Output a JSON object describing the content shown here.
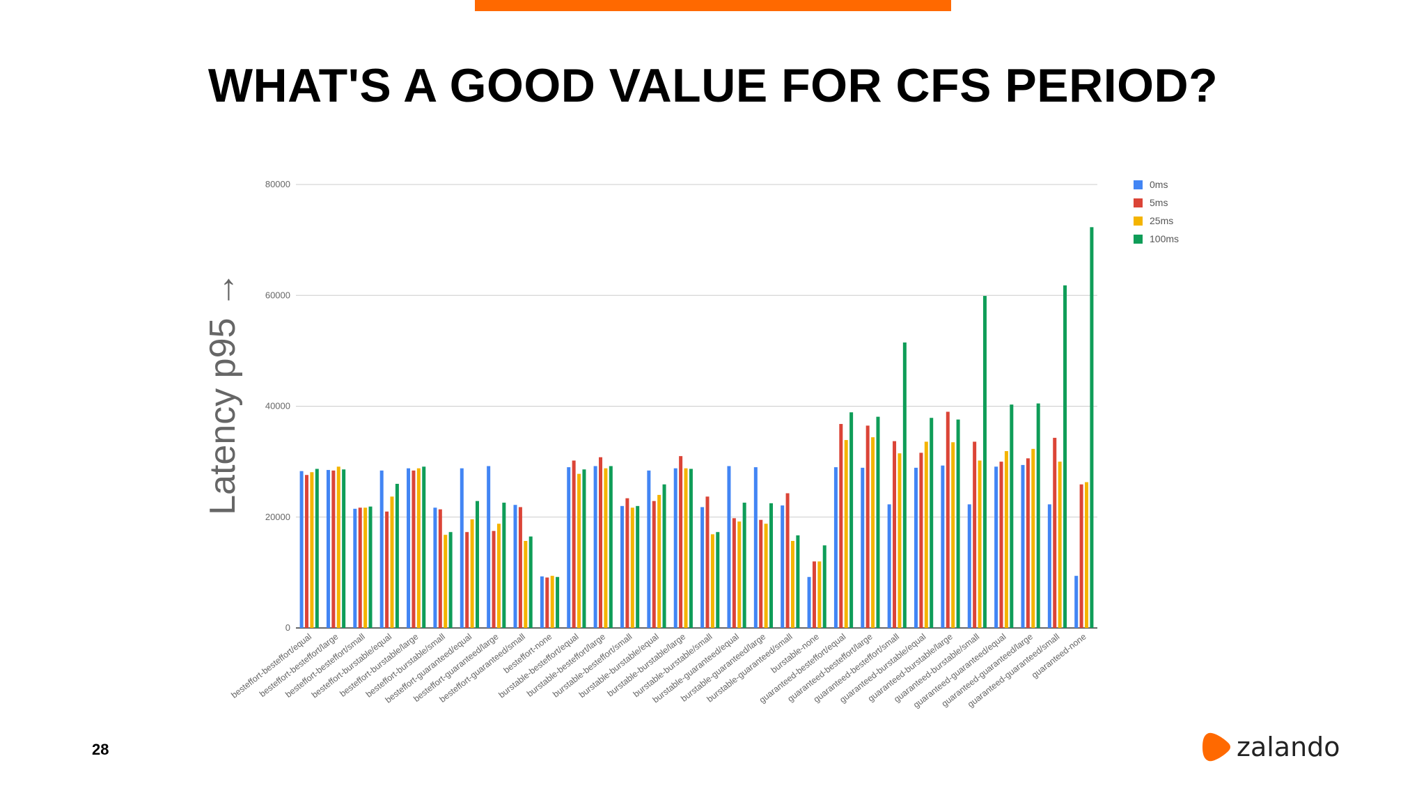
{
  "page": {
    "title": "WHAT'S A GOOD VALUE FOR CFS PERIOD?",
    "page_number": "28",
    "logo_text": "zalando",
    "accent_color": "#ff6900"
  },
  "chart_data": {
    "type": "bar",
    "title": "",
    "xlabel": "",
    "ylabel": "Latency p95 →",
    "ylim": [
      0,
      80000
    ],
    "yticks": [
      0,
      20000,
      40000,
      60000,
      80000
    ],
    "grid": true,
    "legend_position": "top-right",
    "categories": [
      "besteffort-besteffort/equal",
      "besteffort-besteffort/large",
      "besteffort-besteffort/small",
      "besteffort-burstable/equal",
      "besteffort-burstable/large",
      "besteffort-burstable/small",
      "besteffort-guaranteed/equal",
      "besteffort-guaranteed/large",
      "besteffort-guaranteed/small",
      "besteffort-none",
      "burstable-besteffort/equal",
      "burstable-besteffort/large",
      "burstable-besteffort/small",
      "burstable-burstable/equal",
      "burstable-burstable/large",
      "burstable-burstable/small",
      "burstable-guaranteed/equal",
      "burstable-guaranteed/large",
      "burstable-guaranteed/small",
      "burstable-none",
      "guaranteed-besteffort/equal",
      "guaranteed-besteffort/large",
      "guaranteed-besteffort/small",
      "guaranteed-burstable/equal",
      "guaranteed-burstable/large",
      "guaranteed-burstable/small",
      "guaranteed-guaranteed/equal",
      "guaranteed-guaranteed/large",
      "guaranteed-guaranteed/small",
      "guaranteed-none"
    ],
    "series": [
      {
        "name": "0ms",
        "color": "#4285f4",
        "values": [
          28300,
          28500,
          21500,
          28400,
          28800,
          21700,
          28800,
          29200,
          22200,
          9300,
          29000,
          29200,
          22000,
          28400,
          28800,
          21800,
          29200,
          29000,
          22100,
          9200,
          29000,
          28900,
          22300,
          28900,
          29300,
          22300,
          29100,
          29400,
          22300,
          9400
        ]
      },
      {
        "name": "5ms",
        "color": "#db4437",
        "values": [
          27600,
          28400,
          21700,
          21000,
          28400,
          21400,
          17300,
          17500,
          21800,
          9100,
          30200,
          30800,
          23400,
          22900,
          31000,
          23700,
          19800,
          19500,
          24300,
          12000,
          36800,
          36500,
          33700,
          31600,
          39000,
          33600,
          30000,
          30600,
          34300,
          25900
        ]
      },
      {
        "name": "25ms",
        "color": "#f4b400",
        "values": [
          28100,
          29100,
          21700,
          23700,
          28800,
          16800,
          19600,
          18800,
          15700,
          9400,
          27800,
          28800,
          21700,
          24000,
          28800,
          16900,
          19200,
          18800,
          15700,
          12000,
          33900,
          34400,
          31500,
          33600,
          33500,
          30200,
          31900,
          32300,
          30000,
          26300
        ]
      },
      {
        "name": "100ms",
        "color": "#0f9d58",
        "values": [
          28700,
          28600,
          21900,
          26000,
          29100,
          17300,
          22900,
          22600,
          16500,
          9200,
          28600,
          29200,
          22000,
          25900,
          28700,
          17300,
          22600,
          22500,
          16700,
          14900,
          38900,
          38100,
          51500,
          37900,
          37600,
          59900,
          40300,
          40500,
          61800,
          72300
        ]
      }
    ]
  }
}
